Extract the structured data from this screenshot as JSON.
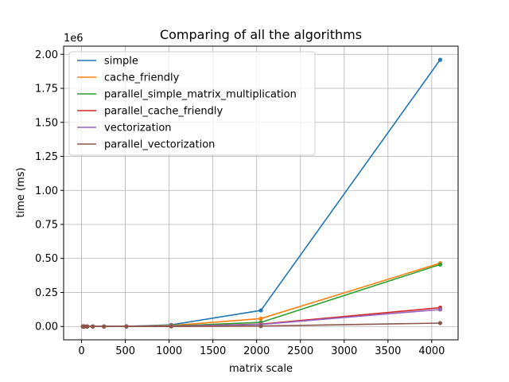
{
  "chart_data": {
    "type": "line",
    "title": "Comparing of all the algorithms",
    "xlabel": "matrix scale",
    "ylabel": "time (ms)",
    "y_offset_text": "1e6",
    "x_ticks": [
      0,
      500,
      1000,
      1500,
      2000,
      2500,
      3000,
      3500,
      4000
    ],
    "x_tick_labels": [
      "0",
      "500",
      "1000",
      "1500",
      "2000",
      "2500",
      "3000",
      "3500",
      "4000"
    ],
    "y_ticks": [
      0,
      0.25,
      0.5,
      0.75,
      1.0,
      1.25,
      1.5,
      1.75,
      2.0
    ],
    "y_tick_labels": [
      "0.00",
      "0.25",
      "0.50",
      "0.75",
      "1.00",
      "1.25",
      "1.50",
      "1.75",
      "2.00"
    ],
    "xlim": [
      -205,
      4301
    ],
    "ylim": [
      -0.098,
      2.06
    ],
    "y_unit_scale": 1000000,
    "grid": true,
    "legend_position": "upper-left",
    "x": [
      16,
      32,
      64,
      128,
      256,
      512,
      1024,
      2048,
      4096
    ],
    "series": [
      {
        "name": "simple",
        "color": "#1f77b4",
        "values": [
          0,
          0,
          0,
          0,
          0.0002,
          0.0015,
          0.012,
          0.118,
          1.96
        ]
      },
      {
        "name": "cache_friendly",
        "color": "#ff7f0e",
        "values": [
          0,
          0,
          0,
          0,
          0.0001,
          0.0009,
          0.007,
          0.058,
          0.465
        ]
      },
      {
        "name": "parallel_simple_matrix_multiplication",
        "color": "#2ca02c",
        "values": [
          0,
          0,
          0,
          0,
          0.0001,
          0.0007,
          0.004,
          0.03,
          0.455
        ]
      },
      {
        "name": "parallel_cache_friendly",
        "color": "#d62728",
        "values": [
          0,
          0,
          0,
          0,
          0,
          0.0003,
          0.002,
          0.017,
          0.138
        ]
      },
      {
        "name": "vectorization",
        "color": "#9467bd",
        "values": [
          0,
          0,
          0,
          0,
          0,
          0.0003,
          0.002,
          0.015,
          0.125
        ]
      },
      {
        "name": "parallel_vectorization",
        "color": "#8c564b",
        "values": [
          0,
          0,
          0,
          0,
          0,
          0.0001,
          0.0005,
          0.003,
          0.025
        ]
      }
    ]
  }
}
